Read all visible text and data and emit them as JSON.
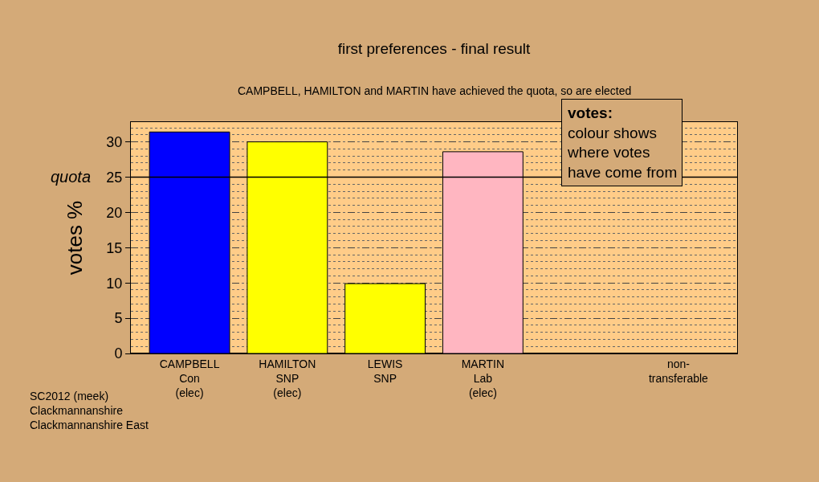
{
  "chart_data": {
    "type": "bar",
    "title": "first preferences - final result",
    "ylabel": "votes %",
    "categories": [
      "CAMPBELL\nCon\n(elec)",
      "HAMILTON\nSNP\n(elec)",
      "LEWIS\nSNP",
      "MARTIN\nLab\n(elec)",
      null,
      "non-\ntransferable"
    ],
    "values": [
      31.4,
      30.0,
      9.9,
      28.6,
      null,
      null
    ],
    "colors": [
      "#0000ff",
      "#ffff00",
      "#ffff00",
      "#ffb6c1",
      "#ffb6c1",
      "#ffb6c1"
    ],
    "ylim": [
      0,
      32.8
    ],
    "yticks": [
      0,
      5,
      10,
      15,
      20,
      25,
      30
    ],
    "grid": "y",
    "ref_lines": [
      {
        "axis": "y",
        "value": 25,
        "label": "quota",
        "color": "#000000",
        "line_style": "solid"
      }
    ],
    "annotations": [
      "CAMPBELL, HAMILTON and MARTIN have achieved the quota, so are elected",
      "votes:\ncolour shows\nwhere votes\nhave come from",
      "SC2012 (meek)\nClackmannanshire\nClackmannanshire East"
    ]
  }
}
